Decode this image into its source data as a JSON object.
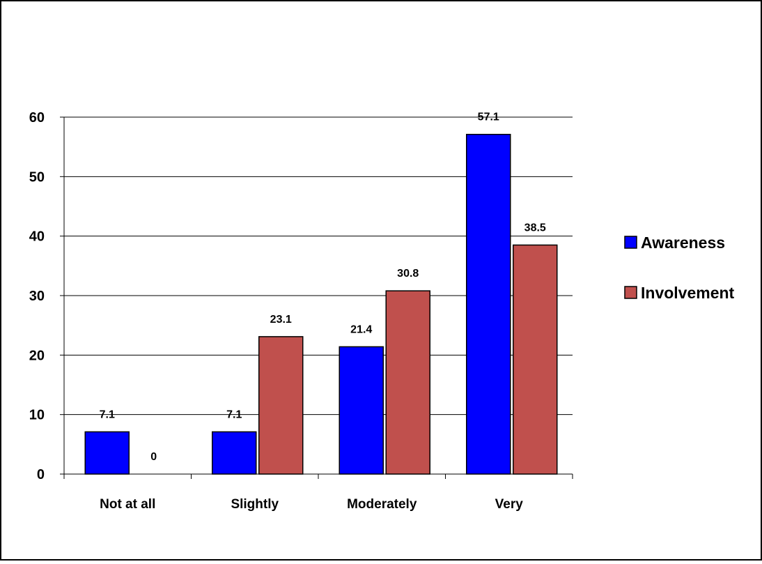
{
  "chart_data": {
    "type": "bar",
    "title": "",
    "xlabel": "",
    "ylabel": "",
    "categories": [
      "Not at all",
      "Slightly",
      "Moderately",
      "Very"
    ],
    "series": [
      {
        "name": "Awareness",
        "values": [
          7.1,
          7.1,
          21.4,
          57.1
        ],
        "labels": [
          "7.1",
          "7.1",
          "21.4",
          "57.1"
        ],
        "color": "#0000FF"
      },
      {
        "name": "Involvement",
        "values": [
          0,
          23.1,
          30.8,
          38.5
        ],
        "labels": [
          "0",
          "23.1",
          "30.8",
          "38.5"
        ],
        "color": "#C0504D"
      }
    ],
    "ylim": [
      0,
      60
    ],
    "yticks": [
      0,
      10,
      20,
      30,
      40,
      50,
      60
    ],
    "ytick_labels": [
      "0",
      "10",
      "20",
      "30",
      "40",
      "50",
      "60"
    ],
    "grid": true,
    "legend_position": "right"
  }
}
